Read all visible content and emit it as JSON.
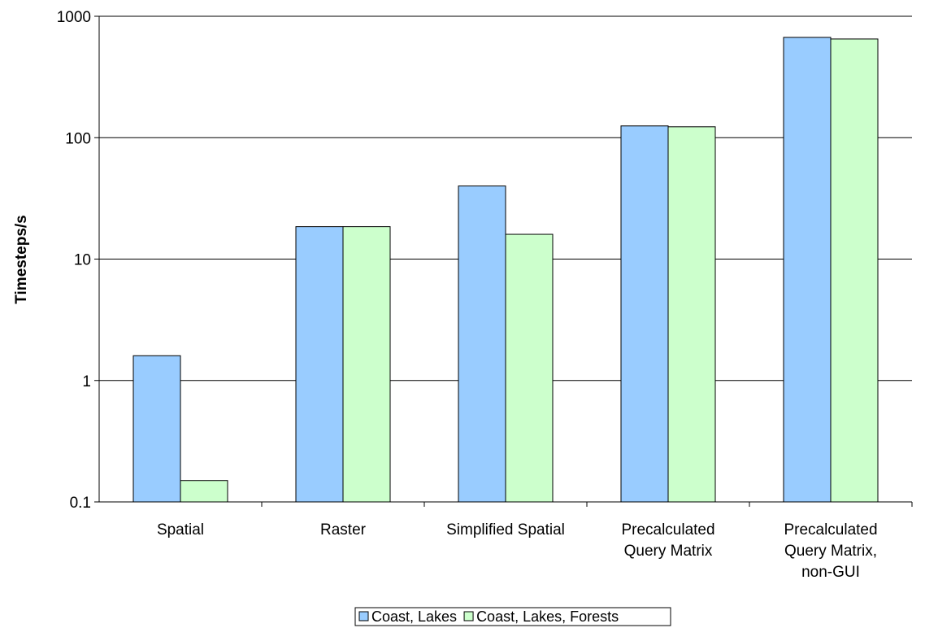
{
  "chart_data": {
    "type": "bar",
    "ylabel": "Timesteps/s",
    "xlabel": "",
    "title": "",
    "yscale": "log",
    "ylim": [
      0.1,
      1000
    ],
    "yticks": [
      "0.1",
      "1",
      "10",
      "100",
      "1000"
    ],
    "categories": [
      [
        "Spatial"
      ],
      [
        "Raster"
      ],
      [
        "Simplified Spatial"
      ],
      [
        "Precalculated",
        "Query Matrix"
      ],
      [
        "Precalculated",
        "Query Matrix,",
        "non-GUI"
      ]
    ],
    "series": [
      {
        "name": "Coast, Lakes",
        "color": "#99ccff",
        "values": [
          1.6,
          18.5,
          40,
          125,
          670
        ]
      },
      {
        "name": "Coast, Lakes, Forests",
        "color": "#ccffcc",
        "values": [
          0.15,
          18.5,
          16,
          123,
          650
        ]
      }
    ],
    "grid": true,
    "legend": "bottom"
  }
}
